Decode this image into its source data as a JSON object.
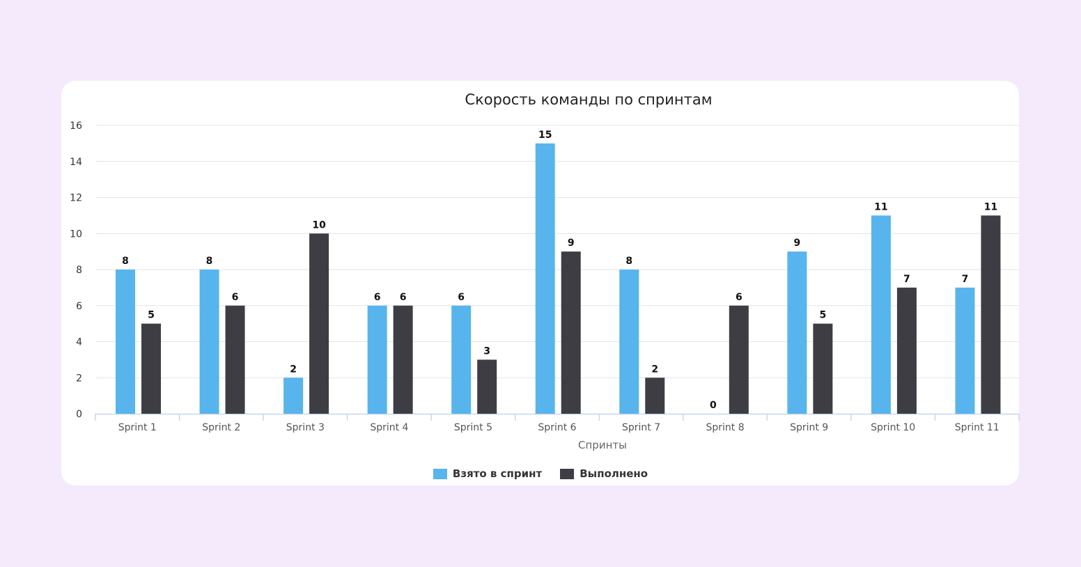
{
  "chart_data": {
    "type": "bar",
    "title": "Скорость команды по спринтам",
    "xlabel": "Спринты",
    "ylabel": "",
    "ylim": [
      0,
      16
    ],
    "yticks": [
      0,
      2,
      4,
      6,
      8,
      10,
      12,
      14,
      16
    ],
    "grid": true,
    "legend_position": "bottom-center",
    "categories": [
      "Sprint 1",
      "Sprint 2",
      "Sprint 3",
      "Sprint 4",
      "Sprint 5",
      "Sprint 6",
      "Sprint 7",
      "Sprint 8",
      "Sprint 9",
      "Sprint 10",
      "Sprint 11"
    ],
    "series": [
      {
        "name": "Взято в спринт",
        "color": "#58b4ec",
        "values": [
          8,
          8,
          2,
          6,
          6,
          15,
          8,
          0,
          9,
          11,
          7
        ]
      },
      {
        "name": "Выполнено",
        "color": "#3e3d44",
        "values": [
          5,
          6,
          10,
          6,
          3,
          9,
          2,
          6,
          5,
          7,
          11
        ]
      }
    ]
  }
}
